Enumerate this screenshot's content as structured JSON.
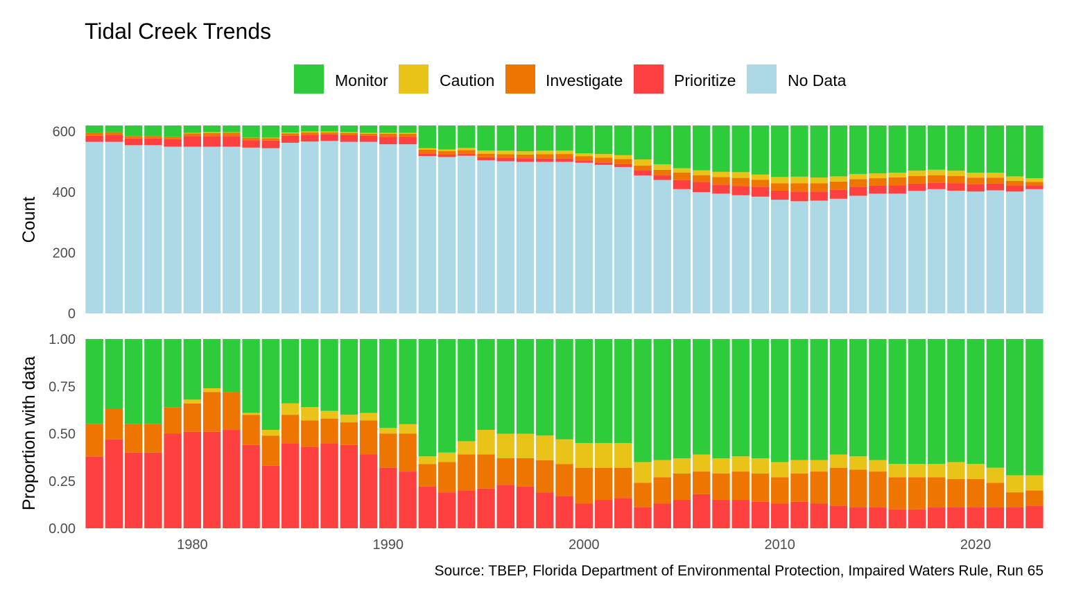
{
  "chart_data": {
    "type": "bar",
    "title": "Tidal Creek Trends",
    "caption": "Source: TBEP, Florida Department of Environmental Protection, Impaired Waters Rule, Run 65",
    "legend_position": "top",
    "grid": false,
    "x": [
      1975,
      1976,
      1977,
      1978,
      1979,
      1980,
      1981,
      1982,
      1983,
      1984,
      1985,
      1986,
      1987,
      1988,
      1989,
      1990,
      1991,
      1992,
      1993,
      1994,
      1995,
      1996,
      1997,
      1998,
      1999,
      2000,
      2001,
      2002,
      2003,
      2004,
      2005,
      2006,
      2007,
      2008,
      2009,
      2010,
      2011,
      2012,
      2013,
      2014,
      2015,
      2016,
      2017,
      2018,
      2019,
      2020,
      2021,
      2022,
      2023
    ],
    "x_ticks": [
      1980,
      1990,
      2000,
      2010,
      2020
    ],
    "legend": [
      {
        "key": "monitor",
        "name": "Monitor",
        "color": "#2ECC3A"
      },
      {
        "key": "caution",
        "name": "Caution",
        "color": "#E9C318"
      },
      {
        "key": "investigate",
        "name": "Investigate",
        "color": "#EE7600"
      },
      {
        "key": "prioritize",
        "name": "Prioritize",
        "color": "#FF4040"
      },
      {
        "key": "nodata",
        "name": "No Data",
        "color": "#ADD8E6"
      }
    ],
    "panels": [
      {
        "name": "count",
        "ylabel": "Count",
        "ylim": [
          0,
          620
        ],
        "yticks": [
          0,
          200,
          400,
          600
        ],
        "ytick_labels": [
          "0",
          "200",
          "400",
          "600"
        ],
        "series": [
          {
            "key": "nodata",
            "values": [
              566,
              566,
              555,
              555,
              550,
              550,
              550,
              550,
              547,
              545,
              563,
              567,
              569,
              566,
              566,
              558,
              558,
              519,
              516,
              520,
              505,
              502,
              500,
              500,
              500,
              497,
              490,
              483,
              455,
              440,
              410,
              400,
              395,
              390,
              385,
              375,
              370,
              372,
              378,
              388,
              395,
              395,
              404,
              410,
              405,
              402,
              406,
              402,
              410
            ]
          },
          {
            "key": "prioritize",
            "values": [
              20,
              23,
              22,
              22,
              25,
              35,
              35,
              35,
              24,
              25,
              23,
              22,
              22,
              22,
              20,
              25,
              25,
              9,
              8,
              7,
              10,
              12,
              12,
              11,
              11,
              8,
              8,
              9,
              18,
              16,
              30,
              34,
              30,
              30,
              33,
              30,
              32,
              30,
              30,
              30,
              26,
              28,
              24,
              21,
              24,
              24,
              22,
              20,
              12
            ]
          },
          {
            "key": "investigate",
            "values": [
              9,
              9,
              8,
              8,
              8,
              9,
              10,
              11,
              8,
              8,
              8,
              8,
              6,
              7,
              7,
              10,
              10,
              12,
              12,
              12,
              12,
              11,
              12,
              14,
              15,
              14,
              16,
              17,
              15,
              18,
              25,
              22,
              25,
              27,
              23,
              24,
              27,
              27,
              27,
              25,
              25,
              26,
              25,
              25,
              24,
              22,
              20,
              15,
              12
            ]
          },
          {
            "key": "caution",
            "values": [
              0,
              0,
              0,
              0,
              0,
              2,
              3,
              2,
              1,
              2,
              3,
              3,
              3,
              3,
              3,
              3,
              3,
              5,
              5,
              7,
              10,
              12,
              11,
              12,
              11,
              9,
              12,
              13,
              20,
              18,
              14,
              16,
              17,
              19,
              17,
              21,
              22,
              19,
              17,
              17,
              16,
              15,
              18,
              18,
              18,
              16,
              16,
              15,
              12
            ]
          },
          {
            "key": "monitor",
            "values": [
              25,
              22,
              35,
              35,
              37,
              24,
              22,
              22,
              40,
              40,
              23,
              20,
              20,
              22,
              24,
              24,
              24,
              75,
              79,
              74,
              83,
              83,
              85,
              83,
              83,
              92,
              94,
              98,
              112,
              128,
              141,
              148,
              153,
              154,
              162,
              170,
              169,
              172,
              168,
              160,
              158,
              156,
              149,
              146,
              149,
              156,
              156,
              168,
              174
            ]
          }
        ]
      },
      {
        "name": "proportion",
        "ylabel": "Proportion with data",
        "ylim": [
          0,
          1
        ],
        "yticks": [
          0,
          0.25,
          0.5,
          0.75,
          1
        ],
        "ytick_labels": [
          "0.00",
          "0.25",
          "0.50",
          "0.75",
          "1.00"
        ],
        "series": [
          {
            "key": "prioritize",
            "values": [
              0.38,
              0.47,
              0.4,
              0.4,
              0.5,
              0.51,
              0.51,
              0.52,
              0.44,
              0.33,
              0.45,
              0.43,
              0.45,
              0.44,
              0.39,
              0.32,
              0.3,
              0.22,
              0.19,
              0.2,
              0.21,
              0.23,
              0.22,
              0.19,
              0.17,
              0.13,
              0.15,
              0.16,
              0.11,
              0.13,
              0.15,
              0.18,
              0.15,
              0.15,
              0.14,
              0.13,
              0.14,
              0.13,
              0.12,
              0.11,
              0.11,
              0.1,
              0.1,
              0.11,
              0.11,
              0.11,
              0.11,
              0.11,
              0.12
            ]
          },
          {
            "key": "investigate",
            "values": [
              0.17,
              0.16,
              0.15,
              0.15,
              0.14,
              0.15,
              0.21,
              0.2,
              0.16,
              0.16,
              0.15,
              0.14,
              0.13,
              0.12,
              0.18,
              0.18,
              0.2,
              0.12,
              0.16,
              0.19,
              0.18,
              0.14,
              0.15,
              0.17,
              0.17,
              0.19,
              0.17,
              0.16,
              0.13,
              0.14,
              0.14,
              0.12,
              0.14,
              0.15,
              0.15,
              0.14,
              0.15,
              0.17,
              0.2,
              0.2,
              0.19,
              0.17,
              0.17,
              0.16,
              0.15,
              0.15,
              0.13,
              0.08,
              0.08
            ]
          },
          {
            "key": "caution",
            "values": [
              0.0,
              0.0,
              0.0,
              0.0,
              0.0,
              0.02,
              0.02,
              0.0,
              0.01,
              0.03,
              0.06,
              0.07,
              0.04,
              0.04,
              0.04,
              0.03,
              0.05,
              0.04,
              0.05,
              0.07,
              0.13,
              0.13,
              0.13,
              0.13,
              0.13,
              0.13,
              0.13,
              0.13,
              0.11,
              0.09,
              0.08,
              0.09,
              0.08,
              0.08,
              0.08,
              0.08,
              0.07,
              0.06,
              0.07,
              0.07,
              0.06,
              0.07,
              0.07,
              0.07,
              0.09,
              0.08,
              0.08,
              0.09,
              0.08
            ]
          },
          {
            "key": "monitor",
            "values": [
              0.45,
              0.37,
              0.45,
              0.45,
              0.36,
              0.32,
              0.26,
              0.28,
              0.39,
              0.48,
              0.34,
              0.36,
              0.38,
              0.4,
              0.39,
              0.47,
              0.45,
              0.62,
              0.6,
              0.54,
              0.48,
              0.5,
              0.5,
              0.51,
              0.53,
              0.55,
              0.55,
              0.55,
              0.65,
              0.64,
              0.63,
              0.61,
              0.63,
              0.62,
              0.63,
              0.65,
              0.64,
              0.64,
              0.61,
              0.62,
              0.64,
              0.66,
              0.66,
              0.66,
              0.65,
              0.66,
              0.68,
              0.72,
              0.72
            ]
          }
        ]
      }
    ]
  }
}
